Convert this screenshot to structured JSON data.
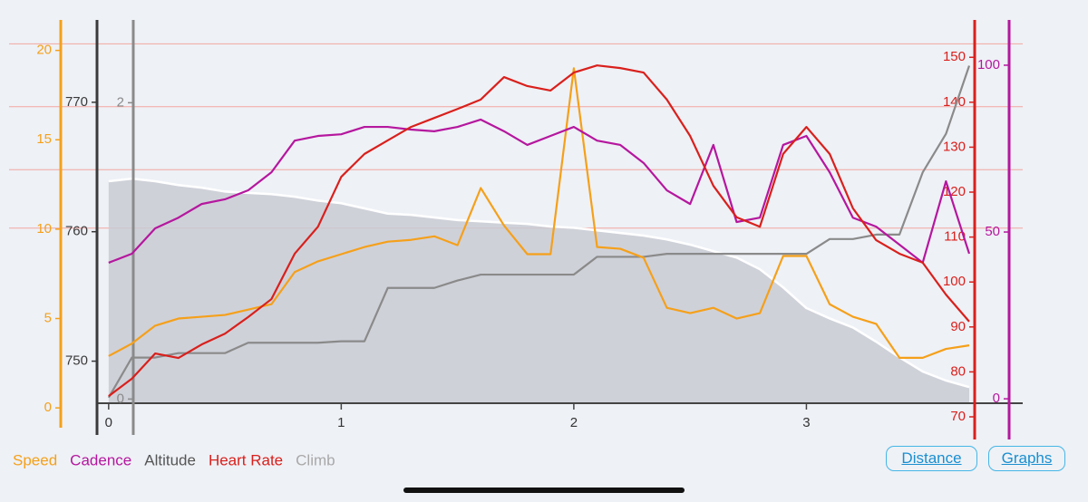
{
  "chart_data": {
    "type": "line",
    "x": [
      0,
      0.1,
      0.2,
      0.3,
      0.4,
      0.5,
      0.6,
      0.7,
      0.8,
      0.9,
      1.0,
      1.1,
      1.2,
      1.3,
      1.4,
      1.5,
      1.6,
      1.7,
      1.8,
      1.9,
      2.0,
      2.1,
      2.2,
      2.3,
      2.4,
      2.5,
      2.6,
      2.7,
      2.8,
      2.9,
      3.0,
      3.1,
      3.2,
      3.3,
      3.4,
      3.5,
      3.6,
      3.7
    ],
    "xlim": [
      -0.05,
      3.93
    ],
    "xticks": [
      0,
      1,
      2,
      3
    ],
    "series": [
      {
        "name": "Speed",
        "color": "#f5a01a",
        "ylim": [
          -0.5,
          21.3
        ],
        "yticks": [
          0,
          5,
          10,
          15,
          20
        ],
        "values": [
          2.9,
          3.6,
          4.6,
          5.0,
          5.1,
          5.2,
          5.5,
          5.8,
          7.6,
          8.2,
          8.6,
          9.0,
          9.3,
          9.4,
          9.6,
          9.1,
          12.3,
          10.2,
          8.6,
          8.6,
          19.0,
          9.0,
          8.9,
          8.4,
          5.6,
          5.3,
          5.6,
          5.0,
          5.3,
          8.5,
          8.5,
          5.8,
          5.1,
          4.7,
          2.8,
          2.8,
          3.3,
          3.5
        ]
      },
      {
        "name": "Cadence",
        "color": "#b5179e",
        "ylim": [
          -5.4,
          111.4
        ],
        "yticks": [
          0,
          50,
          100
        ],
        "values": [
          40.8,
          43.5,
          51.1,
          54.3,
          58.4,
          59.8,
          62.5,
          67.9,
          77.4,
          78.8,
          79.3,
          81.5,
          81.5,
          80.7,
          80.2,
          81.5,
          83.7,
          80.2,
          76.1,
          78.8,
          81.5,
          77.4,
          76.1,
          70.7,
          62.5,
          58.4,
          76.1,
          53.0,
          54.3,
          76.1,
          78.8,
          67.9,
          54.3,
          51.6,
          46.2,
          40.8,
          65.2,
          43.5
        ]
      },
      {
        "name": "Altitude",
        "color": "#555555",
        "fill": "#c9cbd3",
        "ylim": [
          745.7,
          775.8
        ],
        "yticks": [
          750,
          760,
          770
        ],
        "values": [
          763.9,
          764.1,
          763.9,
          763.6,
          763.4,
          763.1,
          763.0,
          762.9,
          762.7,
          762.4,
          762.2,
          761.8,
          761.4,
          761.3,
          761.1,
          760.9,
          760.8,
          760.7,
          760.6,
          760.4,
          760.3,
          760.1,
          759.9,
          759.7,
          759.4,
          759.0,
          758.5,
          758.0,
          757.1,
          755.7,
          754.1,
          753.3,
          752.6,
          751.5,
          750.3,
          749.2,
          748.5,
          748.0
        ]
      },
      {
        "name": "Heart Rate",
        "color": "#d9201c",
        "ylim": [
          70,
          156.7
        ],
        "yticks": [
          70,
          80,
          90,
          100,
          110,
          120,
          130,
          140,
          150
        ],
        "zone_lines": [
          112,
          125,
          139,
          153
        ],
        "zone_color": "#f2a6a0",
        "values": [
          74.6,
          78.5,
          84.1,
          83.1,
          86.1,
          88.5,
          92.2,
          96.2,
          106.3,
          112.3,
          123.4,
          128.5,
          131.5,
          134.5,
          136.5,
          138.5,
          140.6,
          145.6,
          143.6,
          142.6,
          146.6,
          148.2,
          147.6,
          146.6,
          140.6,
          132.5,
          121.4,
          114.4,
          112.3,
          128.5,
          134.5,
          128.5,
          116.4,
          109.3,
          106.3,
          104.3,
          97.2,
          91.2
        ]
      },
      {
        "name": "Climb",
        "color": "#8a8a8a",
        "legend_color": "#a8a8a8",
        "ylim": [
          -0.12,
          2.51
        ],
        "yticks": [
          0,
          2
        ],
        "values": [
          0.01,
          0.28,
          0.28,
          0.31,
          0.31,
          0.31,
          0.38,
          0.38,
          0.38,
          0.38,
          0.39,
          0.39,
          0.75,
          0.75,
          0.75,
          0.8,
          0.84,
          0.84,
          0.84,
          0.84,
          0.84,
          0.96,
          0.96,
          0.96,
          0.98,
          0.98,
          0.98,
          0.98,
          0.98,
          0.98,
          0.98,
          1.08,
          1.08,
          1.11,
          1.11,
          1.53,
          1.79,
          2.25
        ]
      }
    ]
  },
  "buttons": [
    "Distance",
    "Graphs"
  ]
}
